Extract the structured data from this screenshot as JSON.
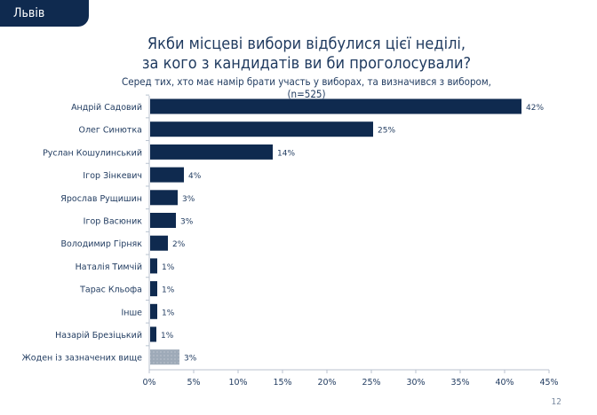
{
  "header": {
    "region": "Львів"
  },
  "page_number": "12",
  "chart_data": {
    "type": "bar",
    "orientation": "horizontal",
    "title": "Якби місцеві вибори відбулися цієї неділі, за кого з кандидатів ви би проголосували?",
    "title_lines": [
      "Якби місцеві вибори відбулися цієї неділі,",
      "за кого з кандидатів ви би проголосували?"
    ],
    "subtitle_lines": [
      "Серед тих, хто має намір брати участь у виборах, та визначився з вибором,",
      "(n=525)"
    ],
    "categories": [
      "Андрій Садовий",
      "Олег Синютка",
      "Руслан Кошулинський",
      "Ігор Зінкевич",
      "Ярослав Рущишин",
      "Ігор Васюник",
      "Володимир Гірняк",
      "Наталія Тимчій",
      "Тарас Кльофа",
      "Інше",
      "Назарій Брезіцький",
      "Жоден із зазначених вище"
    ],
    "values": [
      41.9,
      25.2,
      13.9,
      3.9,
      3.2,
      3.0,
      2.1,
      0.9,
      0.9,
      0.9,
      0.8,
      3.4
    ],
    "data_labels": [
      "42%",
      "25%",
      "14%",
      "4%",
      "3%",
      "3%",
      "2%",
      "1%",
      "1%",
      "1%",
      "1%",
      "3%"
    ],
    "xlim": [
      0,
      45
    ],
    "xticks": [
      0,
      5,
      10,
      15,
      20,
      25,
      30,
      35,
      40,
      45
    ],
    "xtick_labels": [
      "0%",
      "5%",
      "10%",
      "15%",
      "20%",
      "25%",
      "30%",
      "35%",
      "40%",
      "45%"
    ],
    "grid": false,
    "colors": {
      "bar": "#0f2a4f",
      "none_bar": "#9eaab8",
      "text": "#1f3a5f"
    }
  }
}
